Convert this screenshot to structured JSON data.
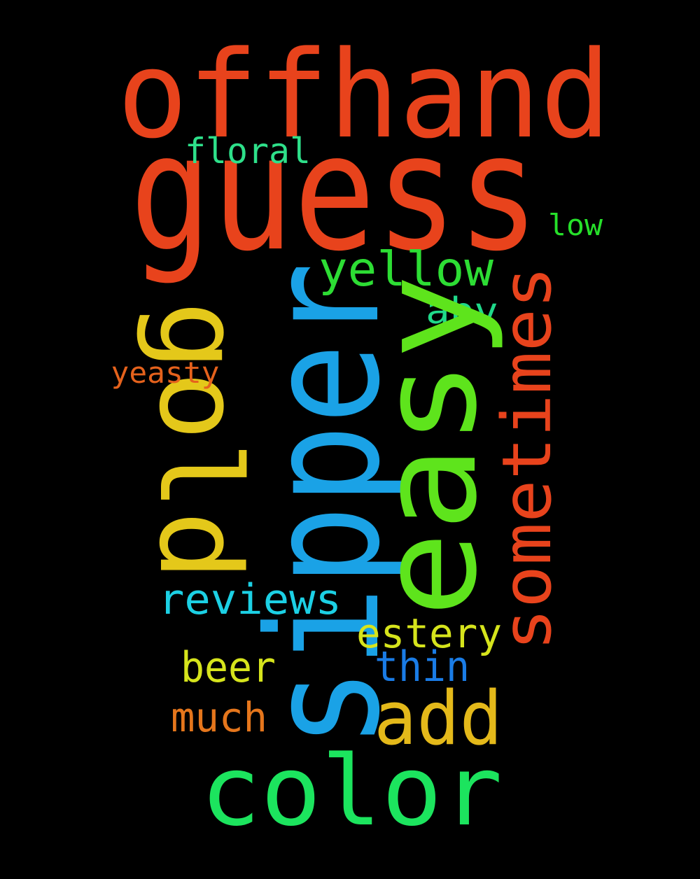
{
  "words": [
    {
      "text": "offhand",
      "color": "#e8431c"
    },
    {
      "text": "guess",
      "color": "#e8431c"
    },
    {
      "text": "floral",
      "color": "#2ee08a"
    },
    {
      "text": "low",
      "color": "#26e02a"
    },
    {
      "text": "yellow",
      "color": "#2ddd34"
    },
    {
      "text": "abv",
      "color": "#1fd98a"
    },
    {
      "text": "gold",
      "color": "#e4c81a"
    },
    {
      "text": "sipper",
      "color": "#1aa2e6"
    },
    {
      "text": "easy",
      "color": "#5ee41c"
    },
    {
      "text": "sometimes",
      "color": "#e8431c"
    },
    {
      "text": "yeasty",
      "color": "#e5621c"
    },
    {
      "text": "reviews",
      "color": "#1cd0e4"
    },
    {
      "text": "estery",
      "color": "#d6e41c"
    },
    {
      "text": "beer",
      "color": "#d6e41c"
    },
    {
      "text": "thin",
      "color": "#1a7ce6"
    },
    {
      "text": "add",
      "color": "#e4b91a"
    },
    {
      "text": "much",
      "color": "#e5761c"
    },
    {
      "text": "color",
      "color": "#1ce45e"
    }
  ]
}
